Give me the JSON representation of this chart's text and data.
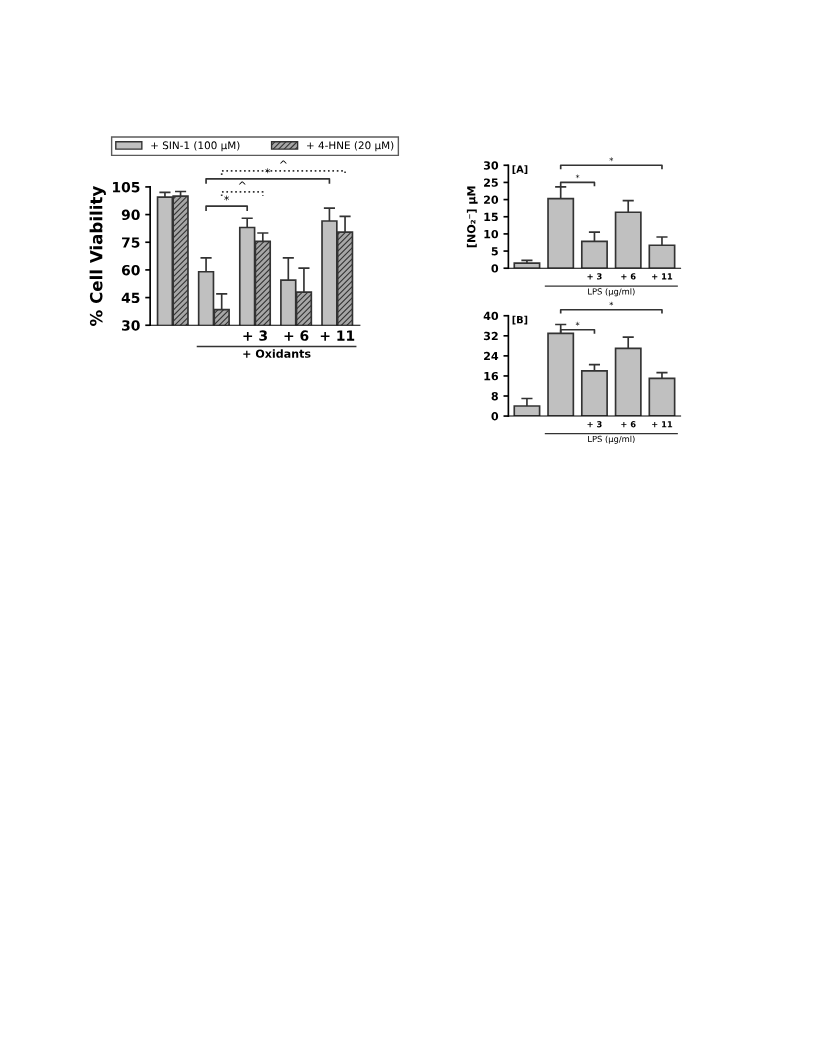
{
  "chart_data": [
    {
      "type": "bar",
      "ylabel": "% Cell Viability",
      "categories": [
        null,
        null,
        "+ 3",
        "+ 6",
        "+ 11"
      ],
      "series": [
        {
          "name": "+ SIN-1 (100 µM)",
          "color": "#c0c0c0",
          "values": [
            99.5,
            59,
            83,
            54.5,
            86.5
          ],
          "errors": [
            2.5,
            7.5,
            5,
            12,
            7
          ]
        },
        {
          "name": "+ 4-HNE (20 µM)",
          "color": "#333333",
          "values": [
            100,
            38.5,
            75.5,
            48,
            80.5
          ],
          "errors": [
            2.5,
            8.5,
            4.5,
            13,
            8.5
          ]
        }
      ],
      "ylim": [
        30,
        105
      ],
      "yticks": [
        30,
        45,
        60,
        75,
        90,
        105
      ],
      "grid": false,
      "legend": "top",
      "annotations": [
        "*",
        "^",
        "*",
        "^",
        "+ Oxidants"
      ]
    },
    {
      "type": "bar",
      "ylabel": "[NO₂⁻] µM",
      "categories": [
        null,
        null,
        "+ 3",
        "+ 6",
        "+ 11"
      ],
      "series": [
        {
          "color": "#c0c0c0",
          "values": [
            1.5,
            20.3,
            7.8,
            16.3,
            6.7
          ],
          "errors": [
            0.8,
            3.4,
            2.7,
            3.4,
            2.4
          ]
        }
      ],
      "ylim": [
        0,
        30
      ],
      "yticks": [
        0,
        5,
        10,
        15,
        20,
        25,
        30
      ],
      "grid": false,
      "annotations": [
        "[A]",
        "*",
        "*",
        "LPS (µg/ml)"
      ]
    },
    {
      "type": "bar",
      "categories": [
        null,
        null,
        "+ 3",
        "+ 6",
        "+ 11"
      ],
      "series": [
        {
          "color": "#c0c0c0",
          "values": [
            4,
            33,
            18,
            27,
            15
          ],
          "errors": [
            3,
            3.5,
            2.5,
            4.5,
            2.3
          ]
        }
      ],
      "ylim": [
        0,
        40
      ],
      "yticks": [
        0,
        8,
        16,
        24,
        32,
        40
      ],
      "grid": false,
      "annotations": [
        "[B]",
        "*",
        "*",
        "LPS (µg/ml)"
      ]
    }
  ]
}
